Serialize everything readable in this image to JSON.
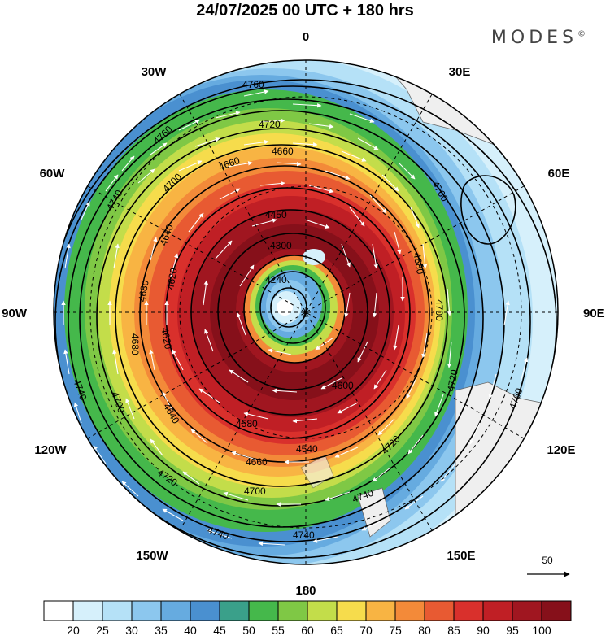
{
  "title": "24/07/2025  00 UTC  + 180 hrs",
  "brand": "MODES",
  "brand_mark": "©",
  "longitude_labels": {
    "lon_0": "0",
    "lon_30e": "30E",
    "lon_60e": "60E",
    "lon_90e": "90E",
    "lon_120e": "120E",
    "lon_150e": "150E",
    "lon_180": "180",
    "lon_150w": "150W",
    "lon_120w": "120W",
    "lon_90w": "90W",
    "lon_60w": "60W",
    "lon_30w": "30W"
  },
  "contour_labels": {
    "c4760_a": "4760",
    "c4760_b": "4760",
    "c4760_c": "4760",
    "c4760_d": "4760",
    "c4740_a": "4740",
    "c4740_b": "4740",
    "c4740_c": "4740",
    "c4740_d": "4740",
    "c4720_a": "4720",
    "c4720_b": "4720",
    "c4720_c": "4720",
    "c4720_d": "4720",
    "c4700_a": "4700",
    "c4700_b": "4700",
    "c4700_c": "4700",
    "c4700_d": "4700",
    "c4680_a": "4680",
    "c4680_b": "4680",
    "c4680_c": "4680",
    "c4660_a": "4660",
    "c4660_b": "4660",
    "c4660_c": "4660",
    "c4640_a": "4640",
    "c4640_b": "4640",
    "c4620_a": "4620",
    "c4620_b": "4620",
    "c4600": "4600",
    "c4580": "4580",
    "c4540": "4540",
    "c4450": "4450",
    "c4300": "4300",
    "c4240": "4240"
  },
  "vector_reference": "50",
  "colorbar": {
    "ticks": [
      "20",
      "25",
      "30",
      "35",
      "40",
      "45",
      "50",
      "55",
      "60",
      "65",
      "70",
      "75",
      "80",
      "85",
      "90",
      "95",
      "100"
    ],
    "colors": [
      "#ffffff",
      "#d6f0fb",
      "#b5e1f7",
      "#8cc7ee",
      "#66abe0",
      "#4a90d0",
      "#3aa08a",
      "#45b84b",
      "#7fc845",
      "#c3dd4a",
      "#f6dc4c",
      "#f8b443",
      "#f38a39",
      "#e85a32",
      "#d9302c",
      "#c01f25",
      "#a01620",
      "#86101a"
    ]
  },
  "map_colors": {
    "land": "#efefef",
    "contour": "#000000",
    "vector": "#ffffff"
  }
}
